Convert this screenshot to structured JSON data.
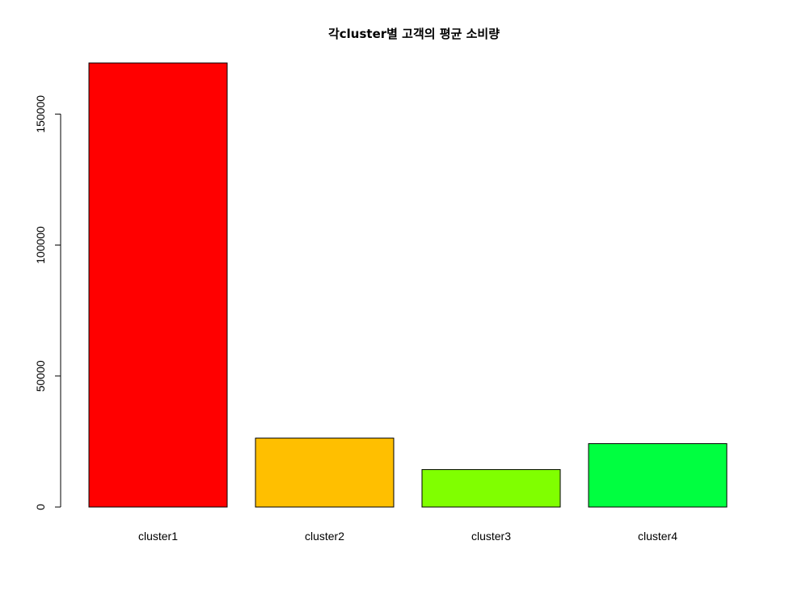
{
  "chart_data": {
    "type": "bar",
    "title": "각cluster별 고객의 평균 소비량",
    "xlabel": "",
    "ylabel": "",
    "categories": [
      "cluster1",
      "cluster2",
      "cluster3",
      "cluster4"
    ],
    "values": [
      169500,
      26300,
      14300,
      24200
    ],
    "colors": [
      "#ff0000",
      "#ffbf00",
      "#80ff00",
      "#00ff40"
    ],
    "yticks": [
      0,
      50000,
      100000,
      150000
    ],
    "ytick_labels": [
      "0",
      "50000",
      "100000",
      "150000"
    ],
    "ylim": [
      0,
      169500
    ],
    "grid": false,
    "legend": "none"
  }
}
